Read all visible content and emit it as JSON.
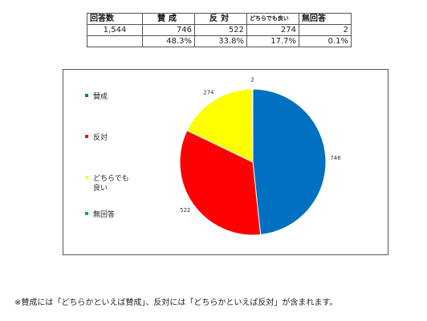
{
  "table": {
    "headers": [
      "回答数",
      "賛成",
      "反対",
      "どちらでも良い",
      "無回答"
    ],
    "counts": [
      "1,544",
      "746",
      "522",
      "274",
      "2"
    ],
    "percents": [
      "",
      "48.3%",
      "33.8%",
      "17.7%",
      "0.1%"
    ]
  },
  "chart_data": {
    "type": "pie",
    "categories": [
      "賛成",
      "反対",
      "どちらでも良い",
      "無回答"
    ],
    "values": [
      746,
      522,
      274,
      2
    ],
    "data_labels": [
      "746",
      "522",
      "274",
      "2"
    ],
    "colors": [
      "#0070C0",
      "#FF0000",
      "#FFFF00",
      "#00B050"
    ],
    "legend_labels": [
      [
        "賛成"
      ],
      [
        "反対"
      ],
      [
        "どちらでも",
        "良い"
      ],
      [
        "無回答"
      ]
    ],
    "legend_position": "left",
    "start_angle_deg": 0,
    "direction": "clockwise"
  },
  "footnote": "※賛成には「どちらかといえば賛成」、反対には「どちらかといえば反対」が含まれます。"
}
